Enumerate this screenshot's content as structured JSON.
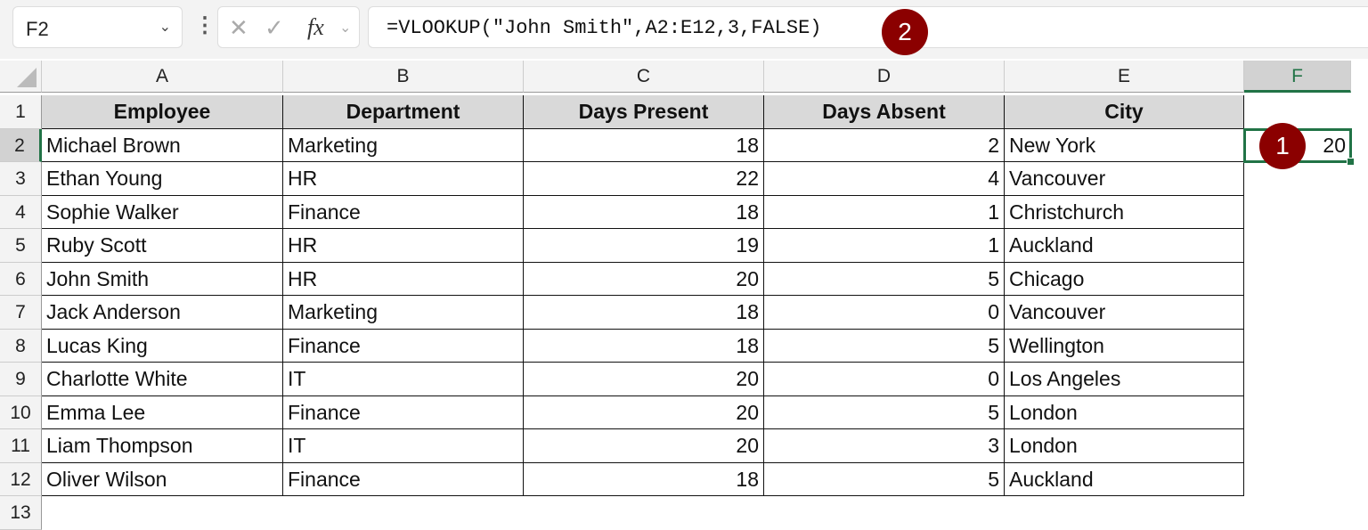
{
  "name_box": "F2",
  "formula": "=VLOOKUP(\"John Smith\",A2:E12,3,FALSE)",
  "icons": {
    "cancel": "✕",
    "enter": "✓",
    "fx": "fx"
  },
  "badges": [
    "1",
    "2"
  ],
  "badge_color": "#8b0000",
  "accent": "#217346",
  "columns": [
    "A",
    "B",
    "C",
    "D",
    "E",
    "F"
  ],
  "rows": [
    "1",
    "2",
    "3",
    "4",
    "5",
    "6",
    "7",
    "8",
    "9",
    "10",
    "11",
    "12",
    "13"
  ],
  "headers": [
    "Employee",
    "Department",
    "Days Present",
    "Days Absent",
    "City"
  ],
  "data": [
    [
      "Michael Brown",
      "Marketing",
      "18",
      "2",
      "New York"
    ],
    [
      "Ethan Young",
      "HR",
      "22",
      "4",
      "Vancouver"
    ],
    [
      "Sophie Walker",
      "Finance",
      "18",
      "1",
      "Christchurch"
    ],
    [
      "Ruby Scott",
      "HR",
      "19",
      "1",
      "Auckland"
    ],
    [
      "John Smith",
      "HR",
      "20",
      "5",
      "Chicago"
    ],
    [
      "Jack Anderson",
      "Marketing",
      "18",
      "0",
      "Vancouver"
    ],
    [
      "Lucas King",
      "Finance",
      "18",
      "5",
      "Wellington"
    ],
    [
      "Charlotte White",
      "IT",
      "20",
      "0",
      "Los Angeles"
    ],
    [
      "Emma Lee",
      "Finance",
      "20",
      "5",
      "London"
    ],
    [
      "Liam Thompson",
      "IT",
      "20",
      "3",
      "London"
    ],
    [
      "Oliver Wilson",
      "Finance",
      "18",
      "5",
      "Auckland"
    ]
  ],
  "result": {
    "cell": "F2",
    "value": "20"
  }
}
